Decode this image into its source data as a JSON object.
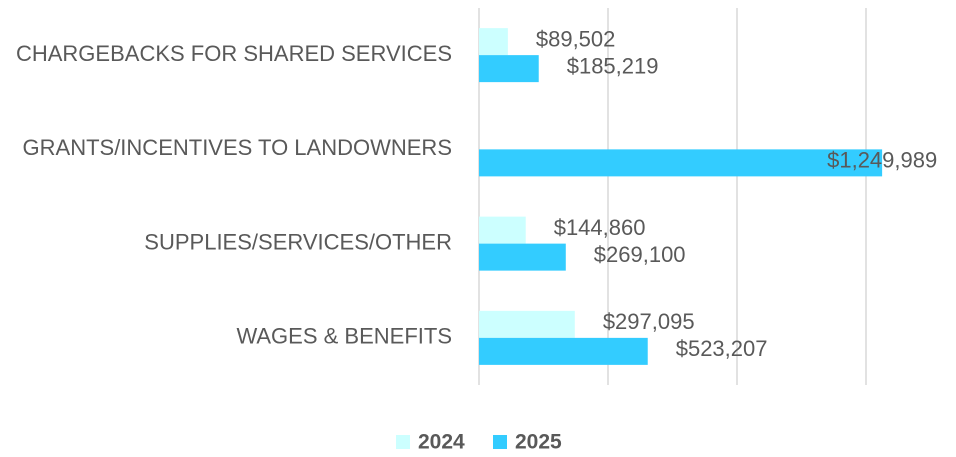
{
  "chart_data": {
    "type": "hbar",
    "categories": [
      "CHARGEBACKS FOR SHARED SERVICES",
      "GRANTS/INCENTIVES TO LANDOWNERS",
      "SUPPLIES/SERVICES/OTHER",
      "WAGES & BENEFITS"
    ],
    "series": [
      {
        "name": "2024",
        "color": "#ccffff",
        "values": [
          89502,
          null,
          144860,
          297095
        ],
        "value_labels": [
          "$89,502",
          null,
          "$144,860",
          "$297,095"
        ]
      },
      {
        "name": "2025",
        "color": "#33ccff",
        "values": [
          185219,
          1249989,
          269100,
          523207
        ],
        "value_labels": [
          "$185,219",
          "$1,249,989",
          "$269,100",
          "$523,207"
        ]
      }
    ],
    "xlim": [
      0,
      1200000
    ],
    "xticks": [
      0,
      400000,
      800000,
      1200000
    ],
    "grid": true,
    "legend": "bottom"
  }
}
